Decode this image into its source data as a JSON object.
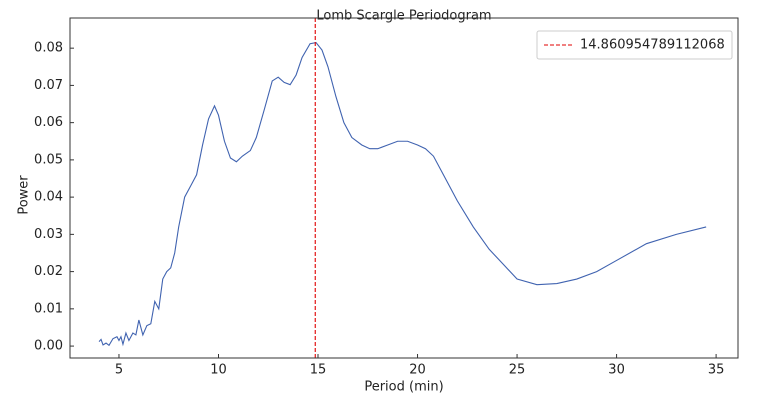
{
  "chart_data": {
    "type": "line",
    "title": "Lomb Scargle Periodogram",
    "x_label": "Period (min)",
    "y_label": "Power",
    "x": [
      4.0,
      4.1,
      4.2,
      4.35,
      4.5,
      4.7,
      4.9,
      5.0,
      5.1,
      5.2,
      5.35,
      5.5,
      5.7,
      5.85,
      6.0,
      6.2,
      6.4,
      6.6,
      6.8,
      7.0,
      7.2,
      7.4,
      7.6,
      7.8,
      8.0,
      8.3,
      8.6,
      8.9,
      9.2,
      9.5,
      9.8,
      10.0,
      10.3,
      10.6,
      10.9,
      11.2,
      11.6,
      11.9,
      12.3,
      12.7,
      13.0,
      13.3,
      13.6,
      13.9,
      14.2,
      14.6,
      14.9,
      15.2,
      15.5,
      15.9,
      16.3,
      16.7,
      17.2,
      17.6,
      18.0,
      18.5,
      19.0,
      19.5,
      20.0,
      20.4,
      20.8,
      21.3,
      22.0,
      22.8,
      23.6,
      24.3,
      25.0,
      26.0,
      27.0,
      28.0,
      29.0,
      30.0,
      31.5,
      33.0,
      34.5
    ],
    "series": [
      {
        "color": "#4063b0",
        "values": [
          0.0012,
          0.0018,
          0.0003,
          0.0008,
          0.0002,
          0.002,
          0.0025,
          0.0015,
          0.0025,
          0.0005,
          0.0035,
          0.0015,
          0.0035,
          0.003,
          0.007,
          0.003,
          0.0055,
          0.006,
          0.012,
          0.01,
          0.018,
          0.02,
          0.021,
          0.025,
          0.032,
          0.04,
          0.043,
          0.046,
          0.054,
          0.061,
          0.0645,
          0.062,
          0.055,
          0.0505,
          0.0495,
          0.051,
          0.0525,
          0.056,
          0.0635,
          0.0712,
          0.0722,
          0.0708,
          0.0702,
          0.0728,
          0.0775,
          0.0812,
          0.0815,
          0.0795,
          0.075,
          0.067,
          0.06,
          0.056,
          0.054,
          0.053,
          0.053,
          0.054,
          0.055,
          0.055,
          0.054,
          0.053,
          0.051,
          0.046,
          0.039,
          0.032,
          0.026,
          0.022,
          0.018,
          0.0165,
          0.0168,
          0.018,
          0.02,
          0.023,
          0.0275,
          0.03,
          0.032
        ]
      }
    ],
    "vline": {
      "x": 14.860954789112068,
      "color": "#e00000"
    },
    "legend": "upper right",
    "xlim": [
      2.54,
      36.1
    ],
    "xticks": [
      5,
      10,
      15,
      20,
      25,
      30,
      35
    ],
    "ylim": [
      -0.0032,
      0.0881
    ],
    "yticks": [
      {
        "value": 0,
        "label": "0.00"
      },
      0.01,
      0.02,
      0.03,
      0.04,
      0.05,
      0.06,
      0.07,
      0.08
    ]
  }
}
